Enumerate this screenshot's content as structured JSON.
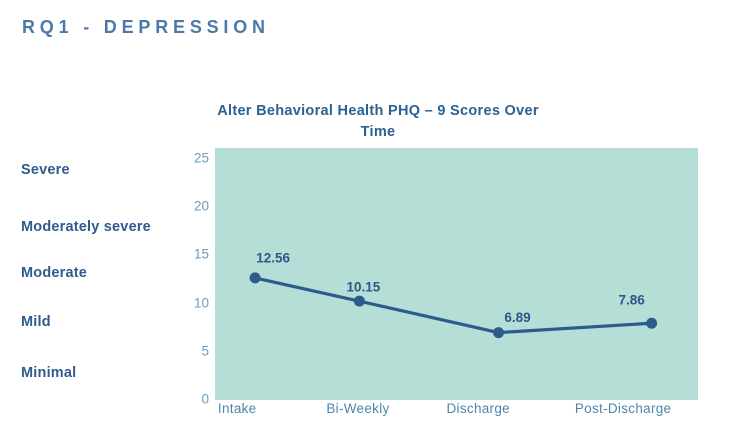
{
  "page": {
    "heading": "RQ1 - DEPRESSION"
  },
  "chart": {
    "title_lines": [
      "Alter Behavioral Health PHQ – 9 Scores Over",
      "Time"
    ]
  },
  "colors": {
    "heading": "#4b7aa8",
    "chart_title": "#2a6292",
    "severity_label": "#2f5b8d",
    "y_tick": "#6d9cb7",
    "x_label": "#4d86ab",
    "plot_bg": "#b5ded6",
    "line": "#2e5c8a",
    "data_label": "#2c5787"
  },
  "chart_data": {
    "type": "line",
    "title": "Alter Behavioral Health PHQ – 9 Scores Over Time",
    "categories": [
      "Intake",
      "Bi-Weekly",
      "Discharge",
      "Post-Discharge"
    ],
    "values": [
      12.56,
      10.15,
      6.89,
      7.86
    ],
    "data_labels": [
      "12.56",
      "10.15",
      "6.89",
      "7.86"
    ],
    "yticks": [
      25,
      20,
      15,
      10,
      5,
      0
    ],
    "ylim": [
      0,
      25
    ],
    "y_axis_band_labels": [
      "Severe",
      "Moderately severe",
      "Moderate",
      "Mild",
      "Minimal"
    ],
    "xlabel": "",
    "ylabel": "",
    "grid": false,
    "legend": false,
    "plot_background": "#b5ded6",
    "line_color": "#2e5c8a",
    "marker": "circle"
  }
}
